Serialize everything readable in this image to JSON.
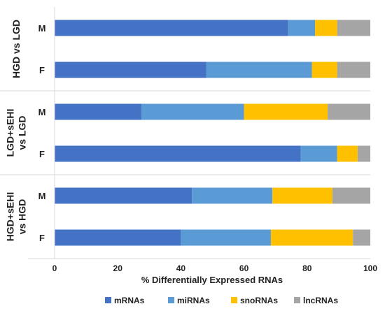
{
  "chart_data": {
    "type": "bar",
    "orientation": "horizontal",
    "stacked": true,
    "xlabel": "% Differentially Expressed RNAs",
    "xlim": [
      0,
      100
    ],
    "xticks": [
      0,
      20,
      40,
      60,
      80,
      100
    ],
    "grid": false,
    "legend_position": "bottom",
    "series": [
      {
        "name": "mRNAs",
        "color": "#4472C4"
      },
      {
        "name": "miRNAs",
        "color": "#5B9BD5"
      },
      {
        "name": "snoRNAs",
        "color": "#FFC000"
      },
      {
        "name": "lncRNAs",
        "color": "#A5A5A5"
      }
    ],
    "groups": [
      {
        "label": "HGD vs LGD",
        "rows": [
          {
            "label": "M",
            "values": [
              74,
              8.5,
              7,
              10.5
            ]
          },
          {
            "label": "F",
            "values": [
              48,
              33.5,
              8,
              10.5
            ]
          }
        ]
      },
      {
        "label": "LGD+sEHI vs LGD",
        "rows": [
          {
            "label": "M",
            "values": [
              27.5,
              32.5,
              26.5,
              13.5
            ]
          },
          {
            "label": "F",
            "values": [
              78,
              11.5,
              6.5,
              4
            ]
          }
        ]
      },
      {
        "label": "HGD+sEHI vs HGD",
        "rows": [
          {
            "label": "M",
            "values": [
              43.5,
              25.5,
              19,
              12
            ]
          },
          {
            "label": "F",
            "values": [
              40,
              28.5,
              26,
              5.5
            ]
          }
        ]
      }
    ]
  }
}
